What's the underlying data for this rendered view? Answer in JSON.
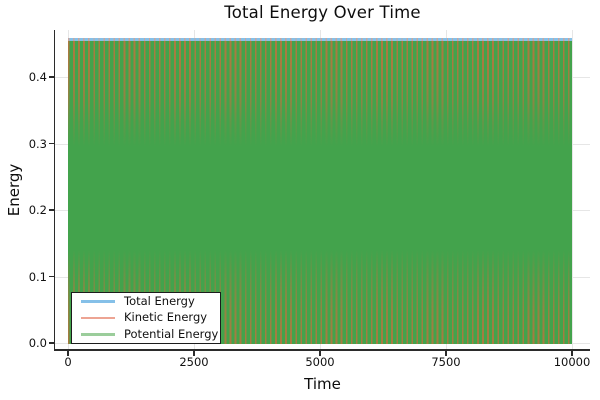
{
  "chart_data": {
    "type": "line",
    "title": "Total Energy Over Time",
    "xlabel": "Time",
    "ylabel": "Energy",
    "xlim": [
      0,
      10000
    ],
    "ylim": [
      0.0,
      0.455
    ],
    "x_ticks": [
      0,
      2500,
      5000,
      7500,
      10000
    ],
    "y_ticks": [
      0.0,
      0.1,
      0.2,
      0.3,
      0.4
    ],
    "grid": true,
    "legend_position": "lower-left",
    "series": [
      {
        "name": "Total Energy",
        "legend_color": "#85c0e8",
        "behavior": "constant",
        "value": 0.455
      },
      {
        "name": "Kinetic Energy",
        "legend_color": "#eda493",
        "behavior": "high-frequency oscillation (aliased vertical striping)",
        "min": 0.0,
        "max": 0.455
      },
      {
        "name": "Potential Energy",
        "legend_color": "#9bcd9b",
        "behavior": "high-frequency oscillation (fills plot as solid green)",
        "min": 0.0,
        "max": 0.455
      }
    ]
  },
  "colors": {
    "total-line": "#85c0e8",
    "kinetic-stripe": "#b5763f",
    "potential-fill": "#43a34c",
    "grid": "#e6e6e6",
    "axis": "#2b2b2b"
  }
}
